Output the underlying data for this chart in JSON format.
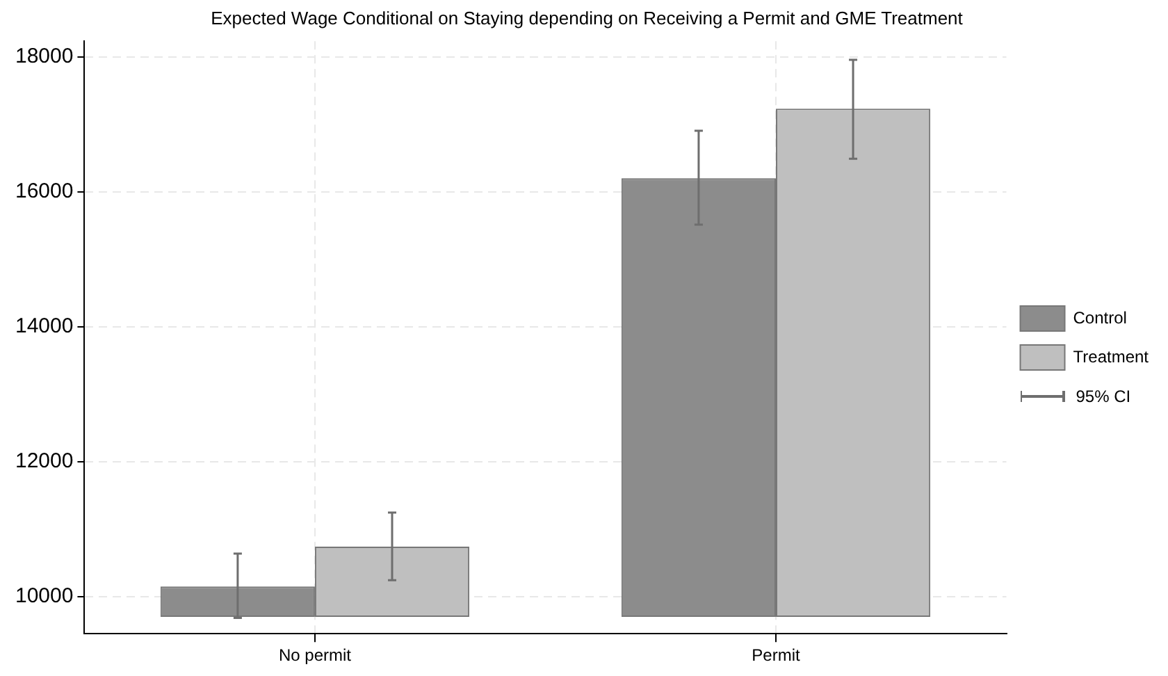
{
  "chart_data": {
    "type": "bar",
    "title": "Expected Wage Conditional on Staying depending on Receiving a Permit and GME Treatment",
    "categories": [
      "No permit",
      "Permit"
    ],
    "series": [
      {
        "name": "Control",
        "color": "#8c8c8c",
        "base": [
          9700,
          9700
        ],
        "values": [
          450,
          6500
        ],
        "errors": [
          [
            9683,
            10637
          ],
          [
            15512,
            16902
          ]
        ]
      },
      {
        "name": "Treatment",
        "color": "#bfbfbf",
        "base": [
          9700,
          9700
        ],
        "values": [
          1040,
          7530
        ],
        "errors": [
          [
            10243,
            11245
          ],
          [
            16488,
            17954
          ]
        ]
      }
    ],
    "ylim": [
      9450,
      18230
    ],
    "yticks": [
      10000,
      12000,
      14000,
      16000,
      18000
    ],
    "grid": true,
    "legend": "right",
    "annotations": [
      "95% CI"
    ]
  }
}
